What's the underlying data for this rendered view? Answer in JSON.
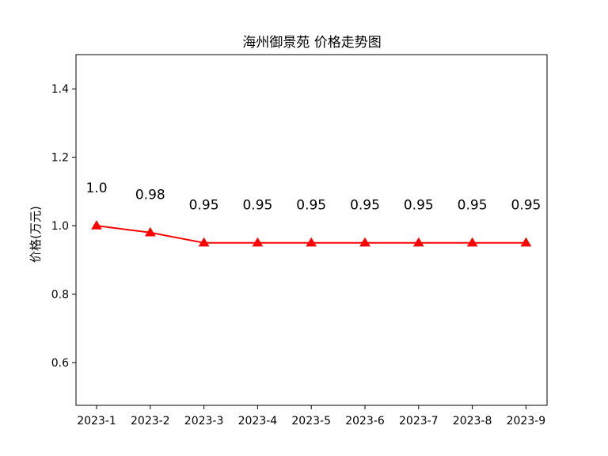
{
  "chart_data": {
    "type": "line",
    "title": "海州御景苑 价格走势图",
    "xlabel": "",
    "ylabel": "价格(万元)",
    "categories": [
      "2023-1",
      "2023-2",
      "2023-3",
      "2023-4",
      "2023-5",
      "2023-6",
      "2023-7",
      "2023-8",
      "2023-9"
    ],
    "values": [
      1.0,
      0.98,
      0.95,
      0.95,
      0.95,
      0.95,
      0.95,
      0.95,
      0.95
    ],
    "data_labels": [
      "1.0",
      "0.98",
      "0.95",
      "0.95",
      "0.95",
      "0.95",
      "0.95",
      "0.95",
      "0.95"
    ],
    "ylim": [
      0.475,
      1.5
    ],
    "yticks": [
      0.6,
      0.8,
      1.0,
      1.2,
      1.4
    ],
    "ytick_labels": [
      "0.6",
      "0.8",
      "1.0",
      "1.2",
      "1.4"
    ],
    "line_color": "#ff0000",
    "marker": "triangle",
    "grid": false,
    "legend": "none"
  }
}
